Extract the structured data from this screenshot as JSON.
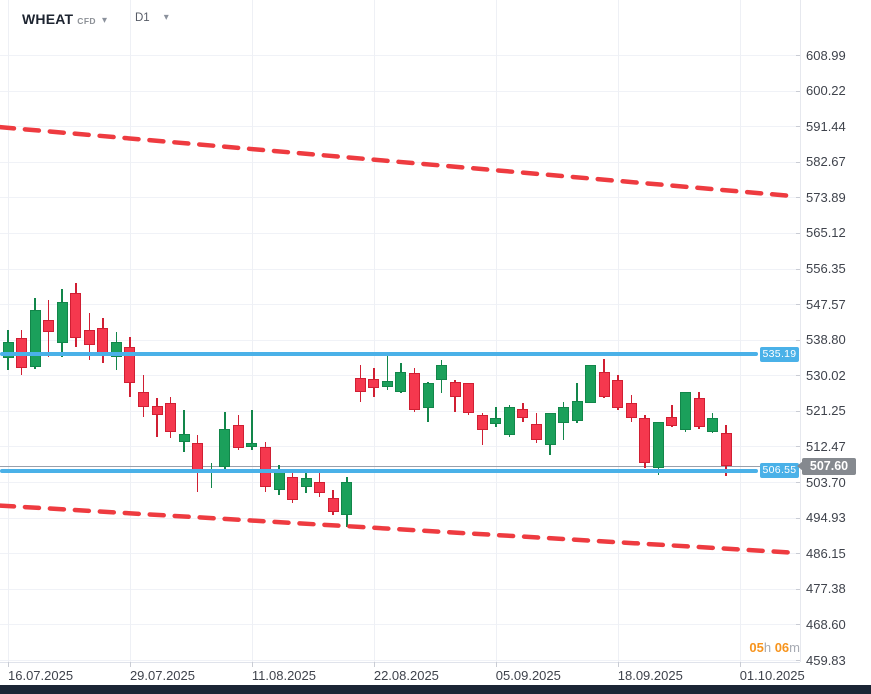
{
  "header": {
    "symbol": "WHEAT",
    "instrument": "CFD",
    "timeframe": "D1"
  },
  "countdown": {
    "hours": "05",
    "h_suffix": "h",
    "minutes": "06",
    "m_suffix": "m"
  },
  "colors": {
    "up_fill": "#1ba05b",
    "up_border": "#12864a",
    "down_fill": "#f5384e",
    "down_border": "#d01f33",
    "level_blue": "#4ab1e8",
    "trend_red": "#ee3b40",
    "current_line": "#9aa0ab",
    "current_label_bg": "#85898f",
    "countdown_accent": "#f7941d",
    "grid": "#f0f2f7",
    "axis_text": "#3f434c"
  },
  "chart_data": {
    "type": "candlestick",
    "title": "WHEAT CFD, D1 daily candlestick chart",
    "y_axis": {
      "top_price": 608.99,
      "bottom_price": 459.83,
      "ticks": [
        608.99,
        600.22,
        591.44,
        582.67,
        573.89,
        565.12,
        556.35,
        547.57,
        538.8,
        530.02,
        521.25,
        512.47,
        503.7,
        494.93,
        486.15,
        477.38,
        468.6,
        459.83
      ]
    },
    "x_axis": {
      "labels": [
        "16.07.2025",
        "29.07.2025",
        "11.08.2025",
        "22.08.2025",
        "05.09.2025",
        "18.09.2025",
        "01.10.2025"
      ],
      "label_indices": [
        0,
        9,
        18,
        27,
        36,
        45,
        54
      ]
    },
    "levels": [
      {
        "label": "535.19",
        "price": 535.19
      },
      {
        "label": "506.55",
        "price": 506.55
      }
    ],
    "current_price": {
      "label": "507.60",
      "price": 507.6
    },
    "trendlines": [
      {
        "name": "upper-channel",
        "start_price": 591.2,
        "end_price": 574.2
      },
      {
        "name": "lower-channel",
        "start_price": 497.9,
        "end_price": 486.3
      }
    ],
    "candles_format": [
      "open",
      "high",
      "low",
      "close"
    ],
    "candles": [
      [
        534.3,
        541.2,
        531.3,
        538.2
      ],
      [
        539.2,
        541.2,
        530.1,
        531.8
      ],
      [
        532.0,
        549.1,
        531.5,
        546.1
      ],
      [
        543.6,
        548.6,
        534.5,
        540.7
      ],
      [
        538.0,
        551.3,
        534.5,
        548.1
      ],
      [
        550.3,
        552.8,
        537.0,
        539.2
      ],
      [
        541.2,
        545.4,
        533.8,
        537.5
      ],
      [
        541.7,
        544.2,
        533.0,
        535.5
      ],
      [
        534.5,
        540.7,
        531.3,
        538.2
      ],
      [
        537.0,
        539.4,
        524.7,
        528.1
      ],
      [
        525.9,
        530.1,
        519.7,
        522.2
      ],
      [
        522.4,
        524.4,
        514.8,
        520.2
      ],
      [
        523.2,
        524.7,
        514.5,
        516.0
      ],
      [
        513.6,
        521.4,
        511.1,
        515.5
      ],
      [
        513.3,
        515.3,
        501.2,
        505.9
      ],
      [
        505.9,
        508.4,
        502.2,
        506.9
      ],
      [
        507.4,
        521.0,
        506.7,
        516.8
      ],
      [
        517.7,
        520.2,
        511.6,
        512.1
      ],
      [
        512.4,
        521.4,
        511.6,
        513.3
      ],
      [
        512.4,
        513.6,
        501.2,
        502.5
      ],
      [
        501.7,
        507.9,
        500.5,
        506.7
      ],
      [
        504.9,
        506.2,
        498.5,
        499.2
      ],
      [
        502.5,
        506.7,
        501.0,
        504.7
      ],
      [
        503.7,
        506.2,
        500.0,
        501.0
      ],
      [
        499.7,
        501.7,
        495.5,
        496.3
      ],
      [
        495.5,
        504.9,
        492.6,
        503.7
      ],
      [
        529.3,
        532.5,
        523.4,
        525.9
      ],
      [
        529.1,
        531.8,
        524.7,
        526.9
      ],
      [
        527.1,
        535.5,
        526.4,
        528.6
      ],
      [
        525.9,
        533.0,
        525.7,
        530.8
      ],
      [
        530.6,
        531.8,
        520.9,
        521.4
      ],
      [
        521.9,
        528.3,
        518.5,
        528.1
      ],
      [
        528.8,
        533.8,
        525.7,
        532.5
      ],
      [
        528.3,
        528.8,
        520.9,
        524.7
      ],
      [
        528.1,
        528.1,
        520.2,
        520.7
      ],
      [
        520.2,
        520.7,
        512.8,
        516.5
      ],
      [
        518.0,
        522.2,
        517.3,
        519.5
      ],
      [
        515.3,
        522.7,
        514.8,
        522.2
      ],
      [
        521.7,
        523.2,
        518.5,
        519.5
      ],
      [
        518.0,
        520.7,
        513.3,
        514.0
      ],
      [
        512.8,
        520.7,
        510.3,
        520.7
      ],
      [
        518.2,
        523.4,
        514.0,
        522.2
      ],
      [
        518.7,
        528.1,
        518.2,
        523.7
      ],
      [
        523.2,
        532.5,
        523.2,
        532.5
      ],
      [
        530.8,
        534.0,
        524.4,
        524.7
      ],
      [
        528.8,
        530.1,
        521.4,
        521.9
      ],
      [
        523.2,
        525.2,
        518.5,
        519.5
      ],
      [
        519.5,
        520.2,
        507.2,
        508.4
      ],
      [
        507.2,
        518.5,
        505.4,
        518.5
      ],
      [
        519.7,
        522.7,
        517.3,
        517.5
      ],
      [
        516.5,
        525.9,
        516.0,
        525.9
      ],
      [
        524.4,
        525.9,
        516.8,
        517.3
      ],
      [
        516.0,
        520.7,
        515.7,
        519.5
      ],
      [
        515.7,
        517.7,
        505.2,
        507.6
      ]
    ]
  }
}
